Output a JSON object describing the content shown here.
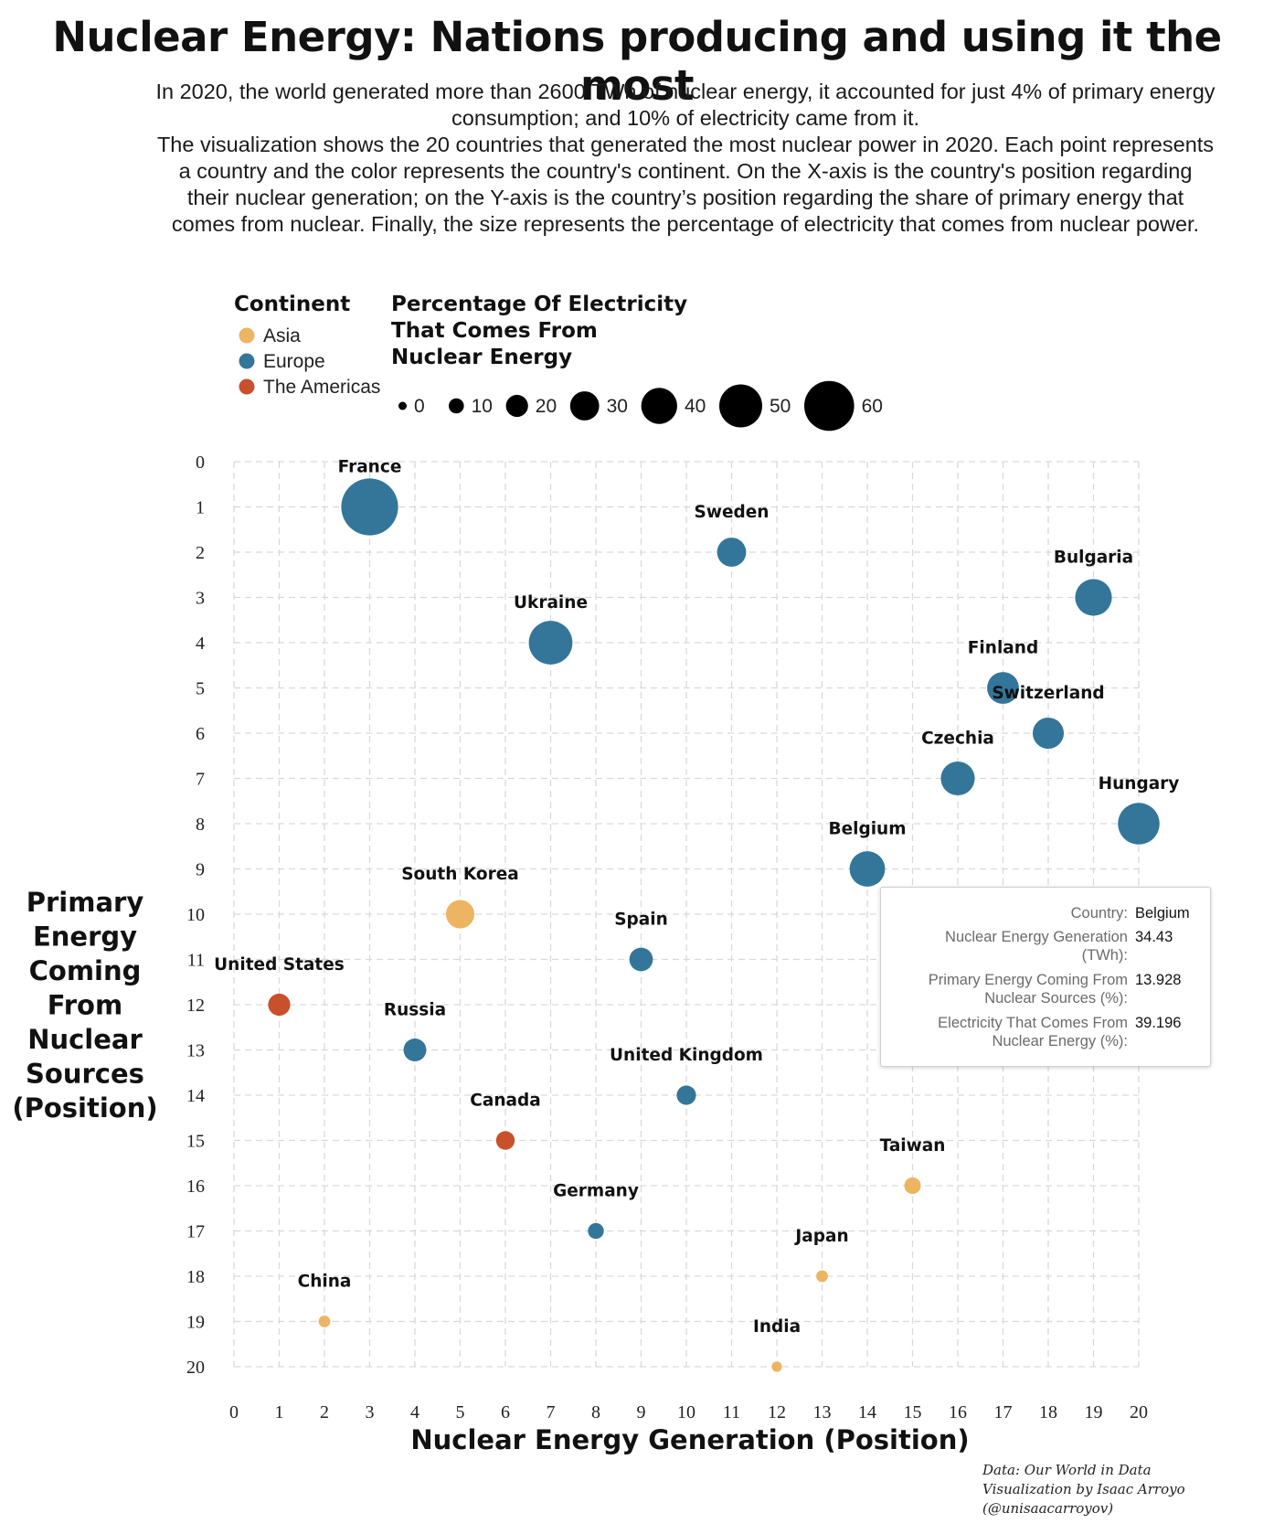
{
  "title": "Nuclear Energy: Nations producing and using it the most",
  "subtitle": [
    "In 2020, the world generated more than 2600 TWh of nuclear energy, it accounted for just 4% of primary energy consumption; and 10% of electricity came from it.",
    "The visualization shows the 20 countries that generated the most nuclear power in 2020. Each point represents a country and the color represents the country's continent. On the X-axis is the country's position regarding their nuclear generation; on the Y-axis is the country’s position regarding the share of primary energy that comes from nuclear. Finally, the size represents the percentage of electricity that comes from nuclear power."
  ],
  "legend": {
    "continent_title": "Continent",
    "continents": [
      {
        "name": "Asia",
        "color": "#EDB462"
      },
      {
        "name": "Europe",
        "color": "#33769A"
      },
      {
        "name": "The Americas",
        "color": "#C9502C"
      }
    ],
    "size_title_lines": [
      "Percentage Of Electricity",
      "That Comes From",
      "Nuclear Energy"
    ],
    "size_values": [
      0,
      10,
      20,
      30,
      40,
      50,
      60
    ],
    "size_labels": [
      "0",
      "10",
      "20",
      "30",
      "40",
      "50",
      "60"
    ]
  },
  "tooltip": {
    "rows": [
      {
        "key": "Country:",
        "value": "Belgium"
      },
      {
        "key": "Nuclear Energy Generation (TWh):",
        "value": "34.43"
      },
      {
        "key": "Primary Energy Coming From Nuclear Sources (%):",
        "value": "13.928"
      },
      {
        "key": "Electricity That Comes From Nuclear Energy (%):",
        "value": "39.196"
      }
    ]
  },
  "credits": [
    "Data: Our World in Data",
    "Visualization by Isaac Arroyo",
    "(@unisaacarroyov)"
  ],
  "chart_data": {
    "type": "scatter",
    "title": "Nuclear Energy: Nations producing and using it the most",
    "xlabel": "Nuclear Energy Generation (Position)",
    "ylabel_lines": [
      "Primary",
      "Energy",
      "Coming",
      "From",
      "Nuclear",
      "Sources",
      "(Position)"
    ],
    "xlim": [
      0,
      20
    ],
    "ylim": [
      0,
      20
    ],
    "y_reversed": true,
    "x_ticks": [
      0,
      1,
      2,
      3,
      4,
      5,
      6,
      7,
      8,
      9,
      10,
      11,
      12,
      13,
      14,
      15,
      16,
      17,
      18,
      19,
      20
    ],
    "y_ticks": [
      0,
      1,
      2,
      3,
      4,
      5,
      6,
      7,
      8,
      9,
      10,
      11,
      12,
      13,
      14,
      15,
      16,
      17,
      18,
      19,
      20
    ],
    "grid": true,
    "points": [
      {
        "country": "France",
        "x": 3,
        "y": 1,
        "continent": "Europe",
        "electricity_pct": 70
      },
      {
        "country": "Sweden",
        "x": 11,
        "y": 2,
        "continent": "Europe",
        "electricity_pct": 30
      },
      {
        "country": "Bulgaria",
        "x": 19,
        "y": 3,
        "continent": "Europe",
        "electricity_pct": 41
      },
      {
        "country": "Ukraine",
        "x": 7,
        "y": 4,
        "continent": "Europe",
        "electricity_pct": 51
      },
      {
        "country": "Finland",
        "x": 17,
        "y": 5,
        "continent": "Europe",
        "electricity_pct": 34
      },
      {
        "country": "Switzerland",
        "x": 18,
        "y": 6,
        "continent": "Europe",
        "electricity_pct": 33
      },
      {
        "country": "Czechia",
        "x": 16,
        "y": 7,
        "continent": "Europe",
        "electricity_pct": 37
      },
      {
        "country": "Hungary",
        "x": 20,
        "y": 8,
        "continent": "Europe",
        "electricity_pct": 48
      },
      {
        "country": "Belgium",
        "x": 14,
        "y": 9,
        "continent": "Europe",
        "electricity_pct": 39.196
      },
      {
        "country": "South Korea",
        "x": 5,
        "y": 10,
        "continent": "Asia",
        "electricity_pct": 29
      },
      {
        "country": "Spain",
        "x": 9,
        "y": 11,
        "continent": "Europe",
        "electricity_pct": 22
      },
      {
        "country": "United States",
        "x": 1,
        "y": 12,
        "continent": "The Americas",
        "electricity_pct": 20
      },
      {
        "country": "Russia",
        "x": 4,
        "y": 13,
        "continent": "Europe",
        "electricity_pct": 21
      },
      {
        "country": "United Kingdom",
        "x": 10,
        "y": 14,
        "continent": "Europe",
        "electricity_pct": 16
      },
      {
        "country": "Canada",
        "x": 6,
        "y": 15,
        "continent": "The Americas",
        "electricity_pct": 15
      },
      {
        "country": "Taiwan",
        "x": 15,
        "y": 16,
        "continent": "Asia",
        "electricity_pct": 12
      },
      {
        "country": "Germany",
        "x": 8,
        "y": 17,
        "continent": "Europe",
        "electricity_pct": 11
      },
      {
        "country": "Japan",
        "x": 13,
        "y": 18,
        "continent": "Asia",
        "electricity_pct": 5
      },
      {
        "country": "China",
        "x": 2,
        "y": 19,
        "continent": "Asia",
        "electricity_pct": 5
      },
      {
        "country": "India",
        "x": 12,
        "y": 20,
        "continent": "Asia",
        "electricity_pct": 3
      }
    ]
  }
}
